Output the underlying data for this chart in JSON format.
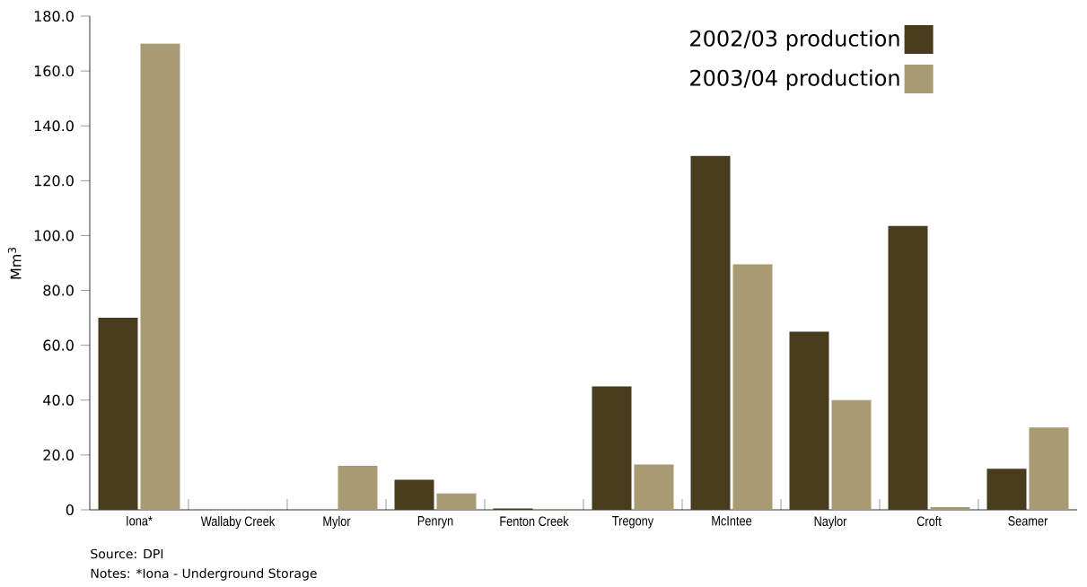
{
  "chart_data": {
    "type": "bar",
    "ylabel": "Mm$^{3}$",
    "categories": [
      "Iona*",
      "Wallaby Creek",
      "Mylor",
      "Penryn",
      "Fenton Creek",
      "Tregony",
      "McIntee",
      "Naylor",
      "Croft",
      "Seamer"
    ],
    "series": [
      {
        "name": "2002/03 production",
        "color": "#483c1c",
        "values": [
          70,
          0,
          0,
          11,
          0.5,
          45,
          129,
          65,
          103.5,
          15
        ]
      },
      {
        "name": "2003/04 production",
        "color": "#a89a73",
        "values": [
          170,
          0,
          16,
          6,
          0.3,
          16.5,
          89.5,
          40,
          1,
          30
        ]
      }
    ],
    "ylim": [
      0,
      180
    ],
    "yticks": [
      {
        "value": 0,
        "label": "0"
      },
      {
        "value": 20,
        "label": "20.0"
      },
      {
        "value": 40,
        "label": "40.0"
      },
      {
        "value": 60,
        "label": "60.0"
      },
      {
        "value": 80,
        "label": "80.0"
      },
      {
        "value": 100,
        "label": "100.0"
      },
      {
        "value": 120,
        "label": "120.0"
      },
      {
        "value": 140,
        "label": "140.0"
      },
      {
        "value": 160,
        "label": "160.0"
      },
      {
        "value": 180,
        "label": "180.0"
      }
    ],
    "legend": "top right",
    "grid": false,
    "annotations": [
      "Source: DPI",
      "Notes: *Iona - Underground Storage"
    ]
  }
}
